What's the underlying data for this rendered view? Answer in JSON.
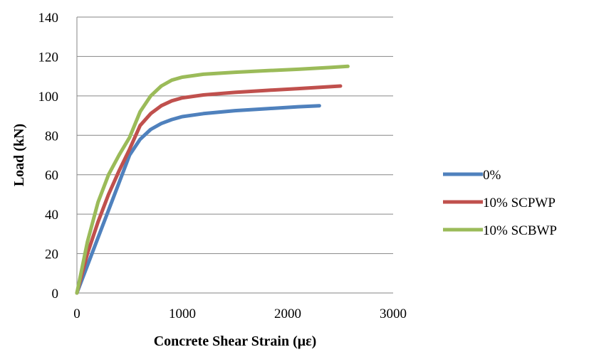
{
  "chart_data": {
    "type": "line",
    "title": "",
    "xlabel": "Concrete Shear Strain (με)",
    "ylabel": "Load (kN)",
    "xlim": [
      0,
      3000
    ],
    "ylim": [
      0,
      140
    ],
    "xticks": [
      0,
      1000,
      2000,
      3000
    ],
    "yticks": [
      0,
      20,
      40,
      60,
      80,
      100,
      120,
      140
    ],
    "grid": "horizontal",
    "legend_position": "right",
    "series": [
      {
        "name": "0%",
        "color": "#4F81BD",
        "x": [
          0,
          100,
          200,
          300,
          400,
          500,
          600,
          700,
          800,
          900,
          1000,
          1200,
          1500,
          1800,
          2100,
          2300
        ],
        "y": [
          0,
          14,
          28,
          42,
          56,
          70,
          78,
          83,
          86,
          88,
          89.5,
          91,
          92.5,
          93.5,
          94.5,
          95
        ]
      },
      {
        "name": "10% SCPWP",
        "color": "#C0504D",
        "x": [
          0,
          100,
          200,
          300,
          400,
          500,
          600,
          700,
          800,
          900,
          1000,
          1200,
          1500,
          1800,
          2100,
          2500
        ],
        "y": [
          0,
          20,
          36,
          50,
          62,
          73,
          85,
          91,
          95,
          97.5,
          99,
          100.5,
          101.8,
          102.8,
          103.7,
          105
        ]
      },
      {
        "name": "10% SCBWP",
        "color": "#9BBB59",
        "x": [
          0,
          100,
          200,
          300,
          400,
          500,
          600,
          700,
          800,
          900,
          1000,
          1200,
          1500,
          1800,
          2100,
          2400,
          2570
        ],
        "y": [
          0,
          26,
          46,
          60,
          70,
          79,
          92,
          100,
          105,
          108,
          109.5,
          111,
          112,
          112.8,
          113.5,
          114.4,
          115
        ]
      }
    ]
  }
}
